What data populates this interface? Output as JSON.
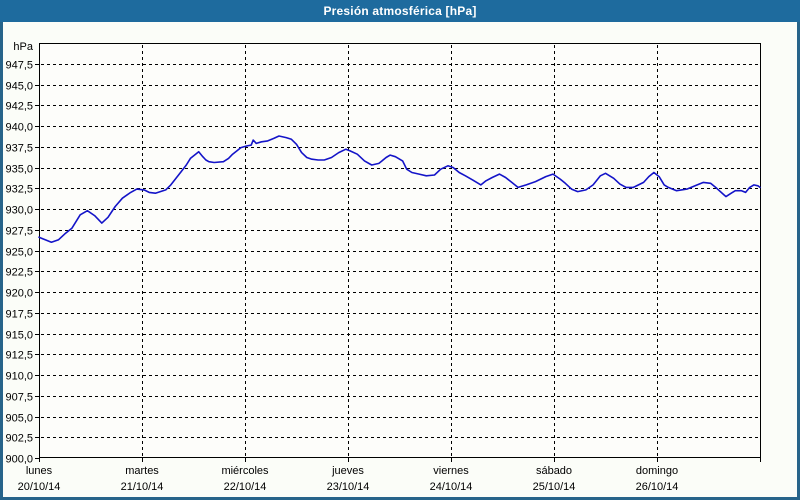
{
  "window": {
    "title": "Presión atmosférica [hPa]"
  },
  "colors": {
    "titlebar_bg": "#1e6b9e",
    "titlebar_text": "#ffffff",
    "window_border": "#27648a",
    "content_bg": "#fbfdf8",
    "plot_bg": "#fdfdfa",
    "grid": "#000000",
    "axis": "#000000",
    "label_text": "#000000",
    "line": "#1414c8"
  },
  "chart_data": {
    "type": "line",
    "title": "Presión atmosférica [hPa]",
    "unit_label": "hPa",
    "grid": "dashed",
    "legend": "none",
    "y_axis": {
      "min": 900,
      "max": 950,
      "tick_step": 2.5,
      "tick_labels": [
        "947,5",
        "945,0",
        "942,5",
        "940,0",
        "937,5",
        "935,0",
        "932,5",
        "930,0",
        "927,5",
        "925,0",
        "922,5",
        "920,0",
        "917,5",
        "915,0",
        "912,5",
        "910,0",
        "907,5",
        "905,0",
        "902,5",
        "900,0"
      ]
    },
    "x_axis": {
      "days": [
        {
          "name": "lunes",
          "date": "20/10/14"
        },
        {
          "name": "martes",
          "date": "21/10/14"
        },
        {
          "name": "miércoles",
          "date": "22/10/14"
        },
        {
          "name": "jueves",
          "date": "23/10/14"
        },
        {
          "name": "viernes",
          "date": "24/10/14"
        },
        {
          "name": "sábado",
          "date": "25/10/14"
        },
        {
          "name": "domingo",
          "date": "26/10/14"
        }
      ],
      "gridline_days": [
        1,
        2,
        3,
        4,
        5,
        6
      ],
      "tick_days": [
        0,
        1,
        2,
        3,
        4,
        5,
        6,
        7
      ]
    },
    "series": [
      {
        "name": "Presión atmosférica",
        "unit": "hPa",
        "points": [
          [
            0.0,
            926.6
          ],
          [
            0.06,
            926.3
          ],
          [
            0.12,
            926.0
          ],
          [
            0.19,
            926.3
          ],
          [
            0.25,
            927.0
          ],
          [
            0.32,
            927.7
          ],
          [
            0.4,
            929.3
          ],
          [
            0.47,
            929.8
          ],
          [
            0.54,
            929.2
          ],
          [
            0.61,
            928.3
          ],
          [
            0.67,
            929.0
          ],
          [
            0.74,
            930.3
          ],
          [
            0.81,
            931.3
          ],
          [
            0.89,
            932.0
          ],
          [
            0.95,
            932.4
          ],
          [
            1.02,
            932.3
          ],
          [
            1.07,
            932.0
          ],
          [
            1.13,
            931.9
          ],
          [
            1.23,
            932.3
          ],
          [
            1.28,
            932.9
          ],
          [
            1.33,
            933.7
          ],
          [
            1.38,
            934.5
          ],
          [
            1.43,
            935.3
          ],
          [
            1.47,
            936.1
          ],
          [
            1.52,
            936.6
          ],
          [
            1.55,
            936.9
          ],
          [
            1.59,
            936.3
          ],
          [
            1.62,
            935.9
          ],
          [
            1.65,
            935.7
          ],
          [
            1.7,
            935.6
          ],
          [
            1.79,
            935.7
          ],
          [
            1.84,
            936.1
          ],
          [
            1.88,
            936.6
          ],
          [
            1.93,
            937.1
          ],
          [
            1.96,
            937.4
          ],
          [
            2.02,
            937.6
          ],
          [
            2.06,
            937.7
          ],
          [
            2.08,
            938.3
          ],
          [
            2.11,
            937.9
          ],
          [
            2.16,
            938.1
          ],
          [
            2.22,
            938.2
          ],
          [
            2.28,
            938.5
          ],
          [
            2.33,
            938.8
          ],
          [
            2.4,
            938.6
          ],
          [
            2.45,
            938.4
          ],
          [
            2.5,
            937.8
          ],
          [
            2.55,
            936.8
          ],
          [
            2.6,
            936.2
          ],
          [
            2.65,
            936.0
          ],
          [
            2.71,
            935.9
          ],
          [
            2.77,
            935.9
          ],
          [
            2.84,
            936.2
          ],
          [
            2.91,
            936.8
          ],
          [
            2.98,
            937.2
          ],
          [
            3.02,
            937.0
          ],
          [
            3.09,
            936.6
          ],
          [
            3.16,
            935.8
          ],
          [
            3.23,
            935.3
          ],
          [
            3.3,
            935.5
          ],
          [
            3.37,
            936.2
          ],
          [
            3.41,
            936.5
          ],
          [
            3.46,
            936.3
          ],
          [
            3.53,
            935.8
          ],
          [
            3.57,
            934.8
          ],
          [
            3.62,
            934.4
          ],
          [
            3.69,
            934.2
          ],
          [
            3.76,
            934.0
          ],
          [
            3.84,
            934.1
          ],
          [
            3.9,
            934.8
          ],
          [
            3.97,
            935.2
          ],
          [
            4.02,
            935.0
          ],
          [
            4.08,
            934.4
          ],
          [
            4.14,
            934.0
          ],
          [
            4.21,
            933.5
          ],
          [
            4.29,
            932.9
          ],
          [
            4.34,
            933.4
          ],
          [
            4.4,
            933.8
          ],
          [
            4.47,
            934.2
          ],
          [
            4.53,
            933.8
          ],
          [
            4.59,
            933.2
          ],
          [
            4.65,
            932.6
          ],
          [
            4.73,
            932.9
          ],
          [
            4.82,
            933.3
          ],
          [
            4.92,
            933.9
          ],
          [
            4.99,
            934.2
          ],
          [
            5.06,
            933.6
          ],
          [
            5.11,
            933.1
          ],
          [
            5.17,
            932.4
          ],
          [
            5.23,
            932.1
          ],
          [
            5.31,
            932.3
          ],
          [
            5.38,
            932.9
          ],
          [
            5.45,
            934.0
          ],
          [
            5.5,
            934.3
          ],
          [
            5.58,
            933.7
          ],
          [
            5.64,
            933.0
          ],
          [
            5.7,
            932.6
          ],
          [
            5.77,
            932.6
          ],
          [
            5.87,
            933.2
          ],
          [
            5.92,
            933.9
          ],
          [
            5.97,
            934.4
          ],
          [
            6.02,
            933.9
          ],
          [
            6.07,
            932.9
          ],
          [
            6.11,
            932.6
          ],
          [
            6.19,
            932.2
          ],
          [
            6.29,
            932.4
          ],
          [
            6.39,
            932.9
          ],
          [
            6.45,
            933.2
          ],
          [
            6.52,
            933.1
          ],
          [
            6.58,
            932.5
          ],
          [
            6.65,
            931.7
          ],
          [
            6.67,
            931.5
          ],
          [
            6.72,
            931.9
          ],
          [
            6.76,
            932.2
          ],
          [
            6.82,
            932.2
          ],
          [
            6.86,
            932.0
          ],
          [
            6.9,
            932.6
          ],
          [
            6.94,
            932.9
          ],
          [
            6.98,
            932.8
          ],
          [
            7.0,
            932.6
          ]
        ]
      }
    ]
  }
}
